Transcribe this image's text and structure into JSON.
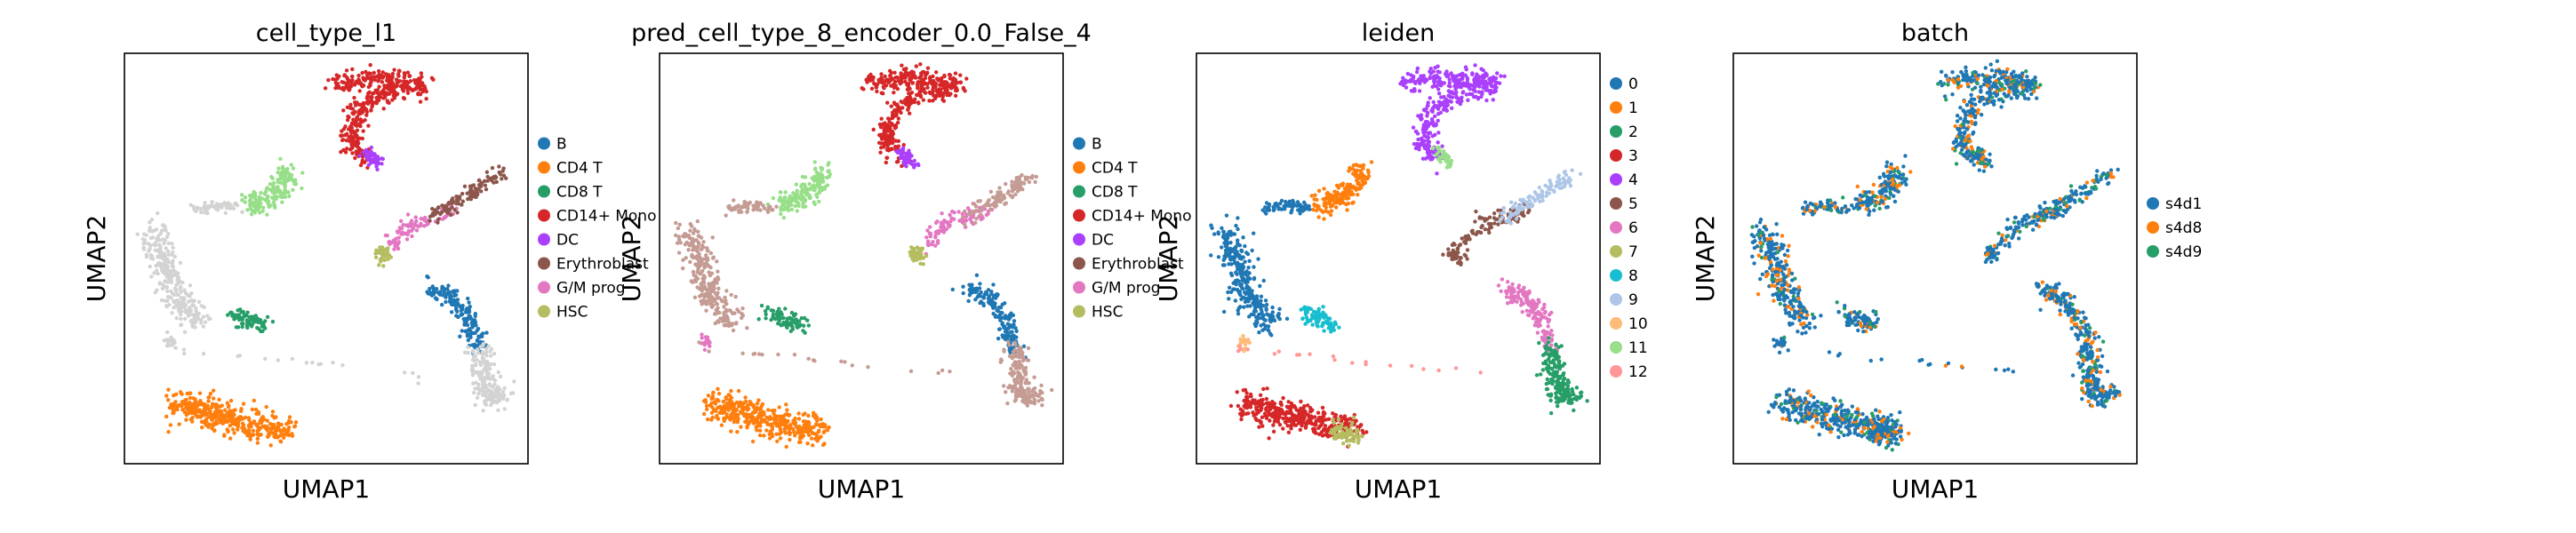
{
  "colors": {
    "c0": "#1f77b4",
    "c1": "#ff7f0e",
    "c2": "#279e68",
    "c3": "#d62728",
    "c4": "#aa40fc",
    "c5": "#8c564b",
    "c6": "#e377c2",
    "c7": "#b5bd61",
    "c8": "#17becf",
    "c9": "#aec7e8",
    "c10": "#ffbb78",
    "c11": "#98df8a",
    "c12": "#ff9896",
    "na": "#d3d3d3"
  },
  "chart_data": [
    {
      "type": "scatter",
      "title": "cell_type_l1",
      "xlabel": "UMAP1",
      "ylabel": "UMAP2",
      "grid": false,
      "legend_position": "right",
      "legend": [
        "B",
        "CD4 T",
        "CD8 T",
        "CD14+ Mono",
        "DC",
        "Erythroblast",
        "G/M prog",
        "HSC"
      ],
      "legend_colors": [
        "c0",
        "c1",
        "c2",
        "c3",
        "c4",
        "c5",
        "c6",
        "c7"
      ],
      "regions": [
        {
          "cluster": "top_arc",
          "color": "c3"
        },
        {
          "cluster": "top_arc_tip",
          "color": "c4"
        },
        {
          "cluster": "left_blob",
          "color": "na"
        },
        {
          "cluster": "left_small_island",
          "color": "na"
        },
        {
          "cluster": "upper_mid_band",
          "color": "c11"
        },
        {
          "cluster": "upper_mid_left",
          "color": "na"
        },
        {
          "cluster": "green_blob",
          "color": "c2"
        },
        {
          "cluster": "bottom_band",
          "color": "c1"
        },
        {
          "cluster": "center_right_chain",
          "color": "c6"
        },
        {
          "cluster": "center_right_chain_knob",
          "color": "c7"
        },
        {
          "cluster": "right_upper_arm",
          "color": "c5"
        },
        {
          "cluster": "right_long_band_upper",
          "color": "c0"
        },
        {
          "cluster": "right_long_band_lower",
          "color": "na"
        },
        {
          "cluster": "bottom_left_pieces",
          "color": "na"
        }
      ]
    },
    {
      "type": "scatter",
      "title": "pred_cell_type_8_encoder_0.0_False_4",
      "xlabel": "UMAP1",
      "ylabel": "UMAP2",
      "grid": false,
      "legend_position": "right",
      "legend": [
        "B",
        "CD4 T",
        "CD8 T",
        "CD14+ Mono",
        "DC",
        "Erythroblast",
        "G/M prog",
        "HSC"
      ],
      "legend_colors": [
        "c0",
        "c1",
        "c2",
        "c3",
        "c4",
        "c5",
        "c6",
        "c7"
      ],
      "regions": [
        {
          "cluster": "top_arc",
          "color": "c3"
        },
        {
          "cluster": "top_arc_tip",
          "color": "c4"
        },
        {
          "cluster": "left_blob",
          "color": "#c49c94"
        },
        {
          "cluster": "left_small_island",
          "color": "c6"
        },
        {
          "cluster": "upper_mid_band",
          "color": "c11"
        },
        {
          "cluster": "upper_mid_left",
          "color": "#c49c94"
        },
        {
          "cluster": "green_blob",
          "color": "c2"
        },
        {
          "cluster": "bottom_band",
          "color": "c1"
        },
        {
          "cluster": "center_right_chain",
          "color": "c6"
        },
        {
          "cluster": "center_right_chain_knob",
          "color": "c7"
        },
        {
          "cluster": "right_upper_arm",
          "color": "#c49c94"
        },
        {
          "cluster": "right_long_band_upper",
          "color": "c0"
        },
        {
          "cluster": "right_long_band_lower",
          "color": "#c49c94"
        },
        {
          "cluster": "bottom_left_pieces",
          "color": "#c49c94"
        }
      ]
    },
    {
      "type": "scatter",
      "title": "leiden",
      "xlabel": "UMAP1",
      "ylabel": "UMAP2",
      "grid": false,
      "legend_position": "right",
      "legend": [
        "0",
        "1",
        "2",
        "3",
        "4",
        "5",
        "6",
        "7",
        "8",
        "9",
        "10",
        "11",
        "12"
      ],
      "legend_colors": [
        "c0",
        "c1",
        "c2",
        "c3",
        "c4",
        "c5",
        "c6",
        "c7",
        "c8",
        "c9",
        "c10",
        "c11",
        "c12"
      ],
      "regions": [
        {
          "cluster": "top_arc",
          "color": "c4"
        },
        {
          "cluster": "top_arc_tip",
          "color": "c11"
        },
        {
          "cluster": "left_blob",
          "color": "c0"
        },
        {
          "cluster": "left_small_island",
          "color": "c10"
        },
        {
          "cluster": "upper_mid_band",
          "color": "c1"
        },
        {
          "cluster": "upper_mid_left",
          "color": "c0"
        },
        {
          "cluster": "green_blob",
          "color": "c8"
        },
        {
          "cluster": "bottom_band",
          "color": "c3"
        },
        {
          "cluster": "bottom_band_tail",
          "color": "c7"
        },
        {
          "cluster": "center_right_chain",
          "color": "c5"
        },
        {
          "cluster": "center_right_chain_knob",
          "color": "c5"
        },
        {
          "cluster": "right_upper_arm",
          "color": "c9"
        },
        {
          "cluster": "right_long_band_upper",
          "color": "c6"
        },
        {
          "cluster": "right_long_band_lower",
          "color": "c2"
        },
        {
          "cluster": "bottom_left_pieces",
          "color": "c12"
        }
      ]
    },
    {
      "type": "scatter",
      "title": "batch",
      "xlabel": "UMAP1",
      "ylabel": "UMAP2",
      "grid": false,
      "legend_position": "right",
      "legend": [
        "s4d1",
        "s4d8",
        "s4d9"
      ],
      "legend_colors": [
        "c0",
        "c1",
        "c2"
      ],
      "regions": [
        {
          "cluster": "all_clusters",
          "color": "mixed: c0 dominant, c1 and c2 interspersed"
        }
      ]
    }
  ]
}
